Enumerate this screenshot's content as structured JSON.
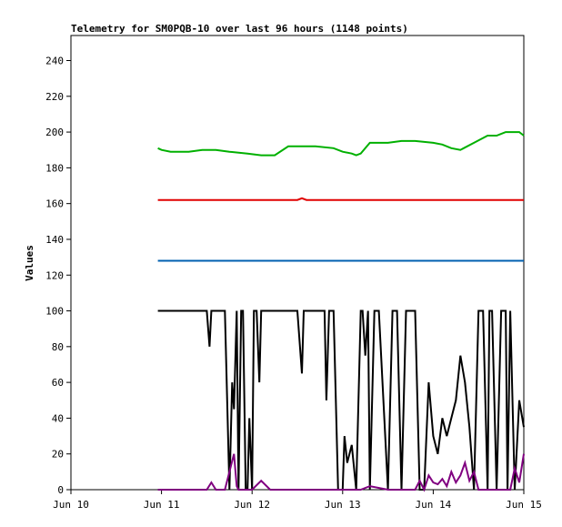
{
  "chart_data": {
    "type": "line",
    "title": "Telemetry for SM0PQB-10 over last 96 hours (1148 points)",
    "xlabel": "",
    "ylabel": "Values",
    "x_ticks": [
      "Jun 10",
      "Jun 11",
      "Jun 12",
      "Jun 13",
      "Jun 14",
      "Jun 15"
    ],
    "xlim": [
      0,
      5
    ],
    "ylim": [
      0,
      254
    ],
    "y_ticks": [
      0,
      20,
      40,
      60,
      80,
      100,
      120,
      140,
      160,
      180,
      200,
      220,
      240
    ],
    "grid": false,
    "legend": "none",
    "series": [
      {
        "color": "#00b000",
        "x": [
          0.96,
          1.0,
          1.1,
          1.3,
          1.45,
          1.6,
          1.75,
          1.95,
          2.1,
          2.25,
          2.4,
          2.7,
          2.9,
          3.0,
          3.1,
          3.15,
          3.2,
          3.3,
          3.5,
          3.65,
          3.8,
          4.0,
          4.1,
          4.2,
          4.3,
          4.45,
          4.6,
          4.7,
          4.75,
          4.8,
          4.85,
          4.95,
          5.0
        ],
        "y": [
          191,
          190,
          189,
          189,
          190,
          190,
          189,
          188,
          187,
          187,
          192,
          192,
          191,
          189,
          188,
          187,
          188,
          194,
          194,
          195,
          195,
          194,
          193,
          191,
          190,
          194,
          198,
          198,
          199,
          200,
          200,
          200,
          198
        ]
      },
      {
        "color": "#e00000",
        "x": [
          0.96,
          1.5,
          2.0,
          2.5,
          2.55,
          2.6,
          3.0,
          3.5,
          4.0,
          4.5,
          5.0
        ],
        "y": [
          162,
          162,
          162,
          162,
          163,
          162,
          162,
          162,
          162,
          162,
          162
        ]
      },
      {
        "color": "#0060b0",
        "x": [
          0.96,
          5.0
        ],
        "y": [
          128,
          128
        ]
      },
      {
        "color": "#000000",
        "x": [
          0.96,
          1.5,
          1.53,
          1.55,
          1.57,
          1.6,
          1.7,
          1.75,
          1.78,
          1.8,
          1.83,
          1.85,
          1.88,
          1.9,
          1.93,
          1.95,
          1.97,
          2.0,
          2.02,
          2.05,
          2.08,
          2.1,
          2.12,
          2.13,
          2.15,
          2.2,
          2.25,
          2.3,
          2.35,
          2.4,
          2.45,
          2.5,
          2.55,
          2.57,
          2.6,
          2.65,
          2.7,
          2.75,
          2.8,
          2.82,
          2.85,
          2.9,
          2.95,
          3.0,
          3.02,
          3.05,
          3.1,
          3.15,
          3.2,
          3.22,
          3.25,
          3.28,
          3.3,
          3.35,
          3.4,
          3.5,
          3.55,
          3.6,
          3.65,
          3.7,
          3.75,
          3.8,
          3.85,
          3.9,
          3.95,
          4.0,
          4.05,
          4.1,
          4.15,
          4.2,
          4.25,
          4.3,
          4.35,
          4.4,
          4.45,
          4.5,
          4.55,
          4.6,
          4.62,
          4.65,
          4.7,
          4.75,
          4.8,
          4.82,
          4.85,
          4.9,
          4.95,
          5.0
        ],
        "y": [
          100,
          100,
          80,
          100,
          100,
          100,
          100,
          0,
          60,
          45,
          100,
          0,
          100,
          100,
          0,
          0,
          40,
          0,
          100,
          100,
          60,
          100,
          100,
          100,
          100,
          100,
          100,
          100,
          100,
          100,
          100,
          100,
          65,
          100,
          100,
          100,
          100,
          100,
          100,
          50,
          100,
          100,
          0,
          0,
          30,
          15,
          25,
          0,
          100,
          100,
          75,
          100,
          0,
          100,
          100,
          0,
          100,
          100,
          0,
          100,
          100,
          100,
          0,
          0,
          60,
          30,
          20,
          40,
          30,
          40,
          50,
          75,
          60,
          35,
          0,
          100,
          100,
          0,
          100,
          100,
          0,
          100,
          100,
          0,
          100,
          0,
          50,
          35
        ]
      },
      {
        "color": "#800080",
        "x": [
          0.96,
          1.5,
          1.55,
          1.6,
          1.7,
          1.75,
          1.8,
          1.83,
          1.85,
          1.9,
          2.0,
          2.1,
          2.2,
          2.5,
          3.0,
          3.2,
          3.3,
          3.5,
          3.8,
          3.85,
          3.9,
          3.95,
          4.0,
          4.05,
          4.1,
          4.15,
          4.2,
          4.25,
          4.3,
          4.35,
          4.4,
          4.45,
          4.5,
          4.6,
          4.7,
          4.8,
          4.85,
          4.9,
          4.95,
          5.0
        ],
        "y": [
          0,
          0,
          4,
          0,
          0,
          10,
          20,
          2,
          0,
          0,
          0,
          5,
          0,
          0,
          0,
          0,
          2,
          0,
          0,
          5,
          0,
          8,
          4,
          3,
          6,
          2,
          10,
          4,
          8,
          15,
          5,
          10,
          0,
          0,
          0,
          0,
          0,
          12,
          4,
          20
        ]
      }
    ]
  }
}
